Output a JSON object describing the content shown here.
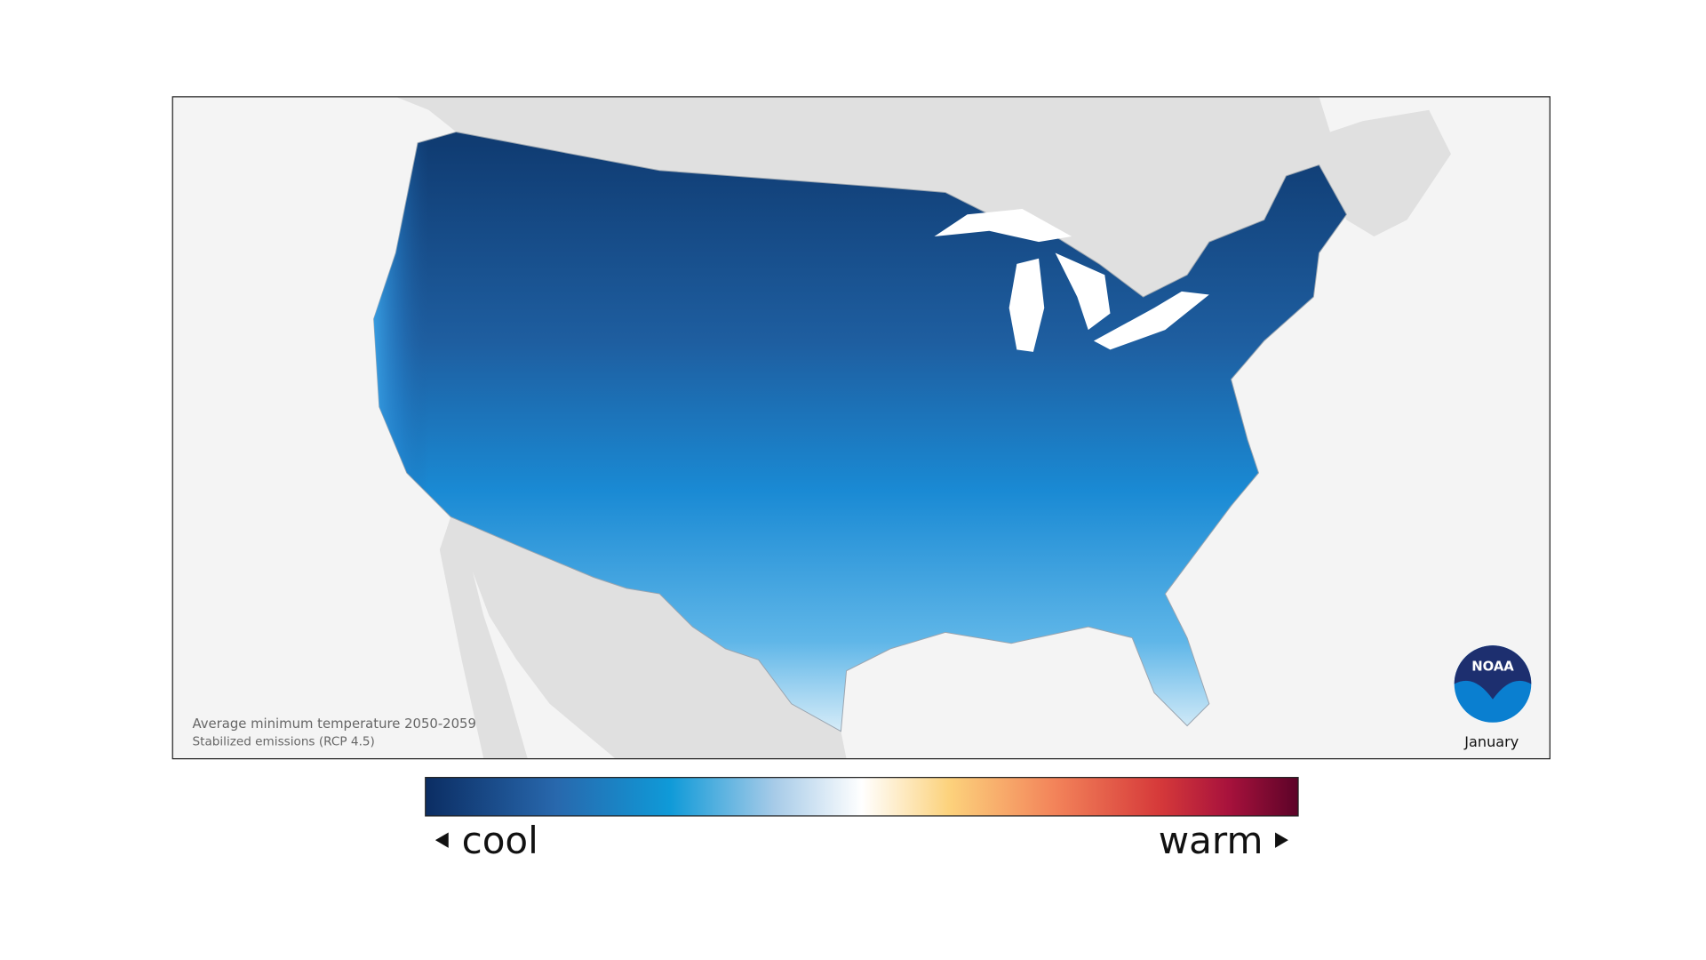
{
  "caption": {
    "line1": "Average minimum temperature 2050-2059",
    "line2": "Stabilized emissions (RCP 4.5)"
  },
  "month": "January",
  "logo": "NOAA",
  "legend": {
    "low": "cool",
    "high": "warm"
  }
}
